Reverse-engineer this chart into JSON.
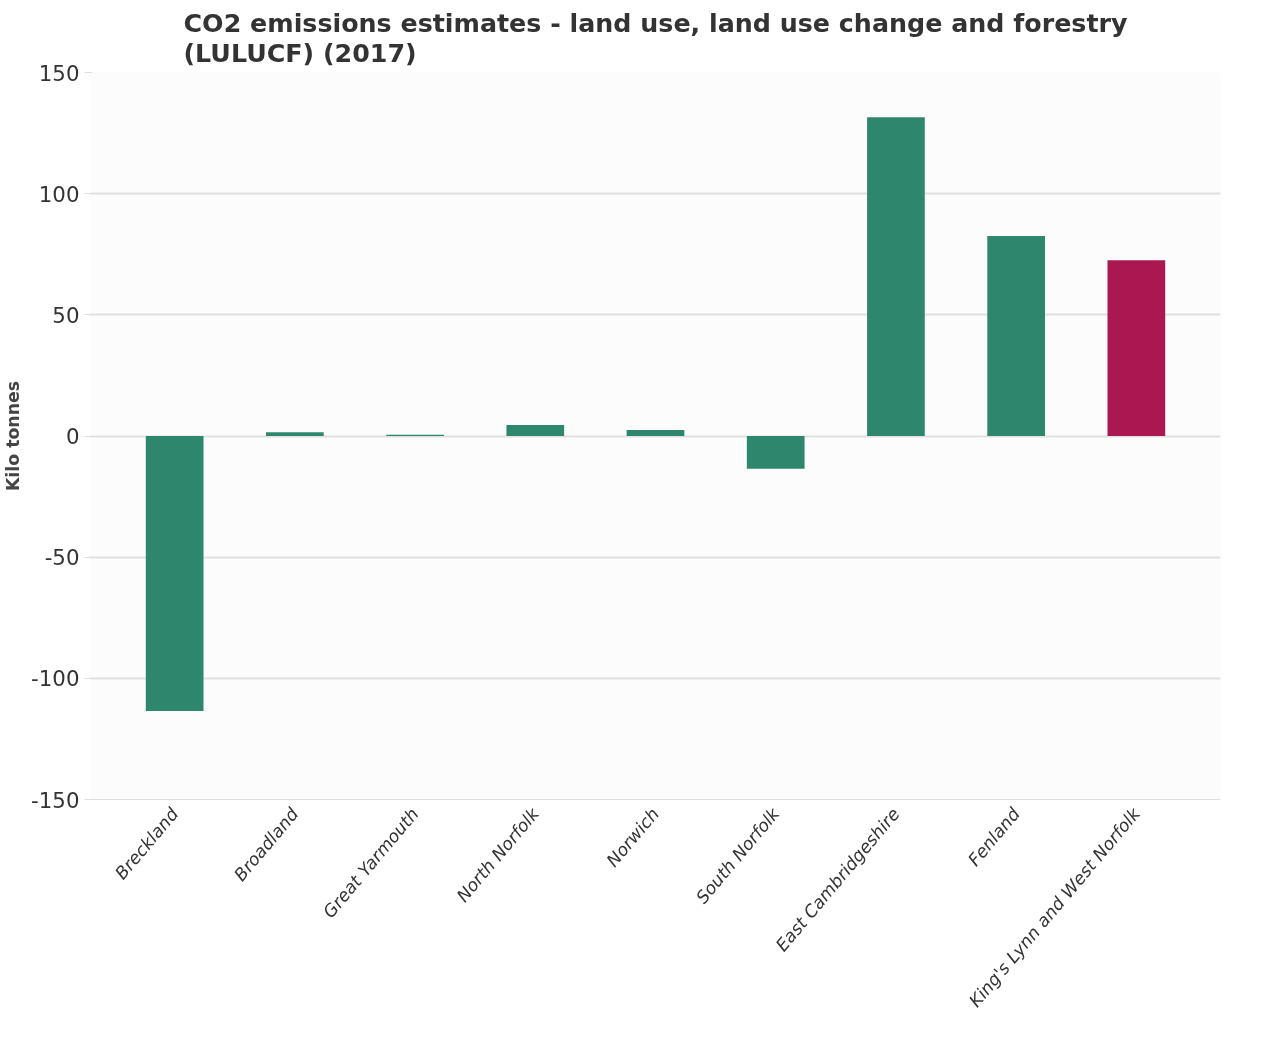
{
  "chart_data": {
    "type": "bar",
    "title": "CO2 emissions estimates - land use, land use change and forestry (LULUCF) (2017)",
    "ylabel": "Kilo tonnes",
    "categories": [
      "Breckland",
      "Broadland",
      "Great Yarmouth",
      "North Norfolk",
      "Norwich",
      "South Norfolk",
      "East Cambridgeshire",
      "Fenland",
      "King's Lynn and West Norfolk"
    ],
    "values": [
      -113.5,
      1.5,
      0.5,
      4.5,
      2.5,
      -13.5,
      131.5,
      82.5,
      72.5
    ],
    "colors": [
      "#2e876c",
      "#2e876c",
      "#2e876c",
      "#2e876c",
      "#2e876c",
      "#2e876c",
      "#2e876c",
      "#2e876c",
      "#ab1751"
    ],
    "ylim": [
      -150,
      150
    ],
    "yticks": [
      -150,
      -100,
      -50,
      0,
      50,
      100,
      150
    ],
    "grid": "y"
  }
}
